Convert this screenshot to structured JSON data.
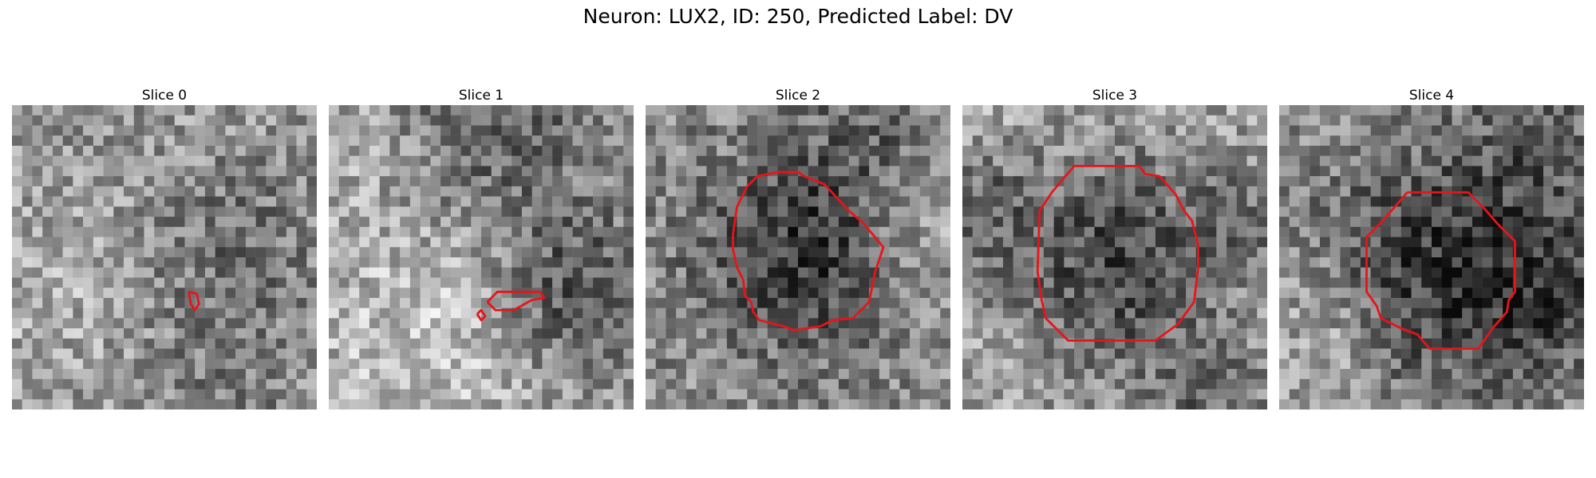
{
  "figure": {
    "title": "Neuron: LUX2, ID: 250, Predicted Label: DV"
  },
  "colors": {
    "contour": "#e8141a",
    "background": "#ffffff"
  },
  "grid_size": 30,
  "panels": [
    {
      "title": "Slice 0",
      "contours": [
        [
          [
            17.4,
            18.4
          ],
          [
            18.2,
            18.6
          ],
          [
            18.4,
            19.6
          ],
          [
            18.0,
            20.2
          ],
          [
            17.6,
            19.6
          ],
          [
            17.4,
            18.4
          ]
        ]
      ]
    },
    {
      "title": "Slice 1",
      "contours": [
        [
          [
            15.6,
            19.4
          ],
          [
            16.6,
            18.4
          ],
          [
            20.8,
            18.4
          ],
          [
            21.2,
            19.0
          ],
          [
            20.0,
            19.2
          ],
          [
            18.2,
            20.2
          ],
          [
            16.4,
            20.2
          ],
          [
            15.6,
            19.4
          ]
        ],
        [
          [
            14.6,
            20.6
          ],
          [
            15.0,
            20.2
          ],
          [
            15.4,
            20.8
          ],
          [
            15.0,
            21.2
          ],
          [
            14.6,
            20.6
          ]
        ]
      ]
    },
    {
      "title": "Slice 2",
      "contours": [
        [
          [
            10.0,
            8.0
          ],
          [
            11.0,
            7.0
          ],
          [
            13.0,
            6.6
          ],
          [
            15.0,
            6.6
          ],
          [
            15.6,
            7.0
          ],
          [
            17.6,
            7.8
          ],
          [
            20.0,
            10.4
          ],
          [
            21.4,
            11.6
          ],
          [
            23.4,
            14.0
          ],
          [
            22.6,
            16.4
          ],
          [
            22.0,
            19.4
          ],
          [
            21.2,
            20.2
          ],
          [
            20.4,
            21.0
          ],
          [
            18.4,
            21.2
          ],
          [
            17.2,
            21.8
          ],
          [
            15.8,
            22.0
          ],
          [
            14.6,
            22.2
          ],
          [
            13.6,
            21.8
          ],
          [
            11.2,
            21.2
          ],
          [
            10.6,
            20.4
          ],
          [
            10.4,
            19.4
          ],
          [
            9.8,
            18.8
          ],
          [
            9.6,
            17.2
          ],
          [
            9.0,
            16.0
          ],
          [
            8.6,
            14.2
          ],
          [
            8.6,
            12.8
          ],
          [
            9.0,
            10.0
          ],
          [
            10.0,
            8.0
          ]
        ]
      ]
    },
    {
      "title": "Slice 3",
      "contours": [
        [
          [
            8.8,
            8.6
          ],
          [
            11.0,
            6.0
          ],
          [
            17.4,
            6.0
          ],
          [
            18.0,
            6.8
          ],
          [
            19.4,
            7.0
          ],
          [
            21.0,
            8.8
          ],
          [
            21.8,
            10.4
          ],
          [
            22.6,
            11.4
          ],
          [
            23.2,
            13.8
          ],
          [
            23.2,
            16.0
          ],
          [
            22.8,
            19.4
          ],
          [
            21.2,
            21.6
          ],
          [
            19.0,
            23.2
          ],
          [
            10.4,
            23.2
          ],
          [
            8.2,
            21.0
          ],
          [
            7.8,
            19.2
          ],
          [
            7.4,
            16.4
          ],
          [
            7.6,
            10.4
          ],
          [
            8.8,
            8.6
          ]
        ]
      ]
    },
    {
      "title": "Slice 4",
      "contours": [
        [
          [
            12.6,
            8.6
          ],
          [
            18.6,
            8.6
          ],
          [
            20.2,
            10.2
          ],
          [
            21.4,
            11.6
          ],
          [
            23.2,
            13.4
          ],
          [
            23.2,
            18.4
          ],
          [
            22.6,
            19.2
          ],
          [
            22.4,
            20.4
          ],
          [
            21.0,
            22.0
          ],
          [
            19.6,
            24.0
          ],
          [
            14.8,
            24.0
          ],
          [
            13.6,
            22.6
          ],
          [
            12.0,
            22.0
          ],
          [
            10.0,
            21.0
          ],
          [
            9.6,
            19.8
          ],
          [
            8.6,
            18.4
          ],
          [
            8.6,
            13.0
          ],
          [
            10.0,
            11.6
          ],
          [
            11.4,
            10.0
          ],
          [
            12.6,
            8.6
          ]
        ]
      ]
    }
  ]
}
